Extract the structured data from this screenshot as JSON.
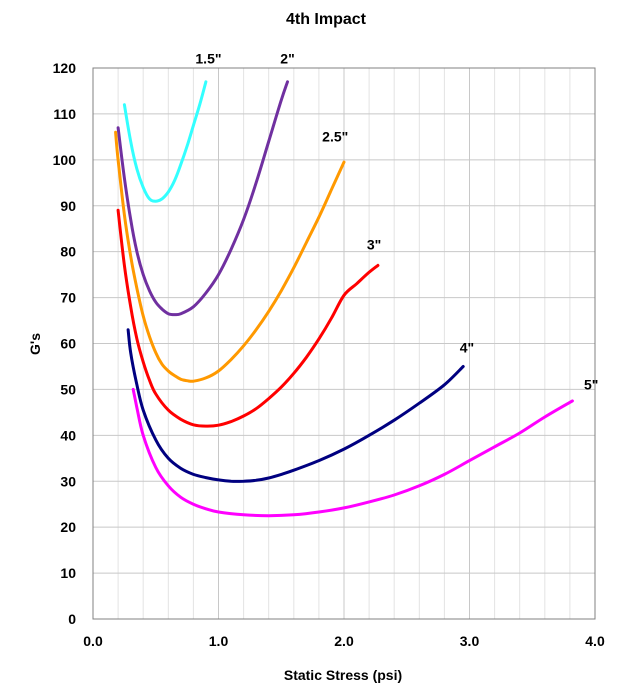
{
  "chart_data": {
    "type": "line",
    "title": "4th Impact",
    "xlabel": "Static Stress (psi)",
    "ylabel": "G's",
    "xlim": [
      0,
      4
    ],
    "ylim": [
      0,
      120
    ],
    "x_ticks": [
      "0.0",
      "1.0",
      "2.0",
      "3.0",
      "4.0"
    ],
    "y_ticks": [
      "0",
      "10",
      "20",
      "30",
      "40",
      "50",
      "60",
      "70",
      "80",
      "90",
      "100",
      "110",
      "120"
    ],
    "grid": true,
    "minor_grid": true,
    "series": [
      {
        "name": "1.5\"",
        "color": "#33ffff",
        "points": [
          [
            0.2,
            121
          ],
          [
            0.25,
            112
          ],
          [
            0.3,
            104
          ],
          [
            0.35,
            98
          ],
          [
            0.4,
            94
          ],
          [
            0.45,
            91.5
          ],
          [
            0.5,
            91
          ],
          [
            0.55,
            91.5
          ],
          [
            0.6,
            93
          ],
          [
            0.65,
            95.5
          ],
          [
            0.7,
            99
          ],
          [
            0.75,
            103
          ],
          [
            0.8,
            107.5
          ],
          [
            0.85,
            112
          ],
          [
            0.9,
            117
          ]
        ]
      },
      {
        "name": "2\"",
        "color": "#7030a0",
        "points": [
          [
            0.15,
            121
          ],
          [
            0.2,
            107
          ],
          [
            0.25,
            96
          ],
          [
            0.3,
            87
          ],
          [
            0.35,
            80
          ],
          [
            0.4,
            75
          ],
          [
            0.45,
            71.5
          ],
          [
            0.5,
            69
          ],
          [
            0.55,
            67.5
          ],
          [
            0.6,
            66.5
          ],
          [
            0.65,
            66.3
          ],
          [
            0.7,
            66.5
          ],
          [
            0.8,
            68
          ],
          [
            0.9,
            71
          ],
          [
            1.0,
            75
          ],
          [
            1.1,
            80.5
          ],
          [
            1.2,
            87
          ],
          [
            1.3,
            95
          ],
          [
            1.4,
            104
          ],
          [
            1.5,
            113
          ],
          [
            1.55,
            117
          ]
        ]
      },
      {
        "name": "2.5\"",
        "color": "#ff9900",
        "points": [
          [
            0.18,
            106
          ],
          [
            0.2,
            100
          ],
          [
            0.25,
            88
          ],
          [
            0.3,
            79
          ],
          [
            0.35,
            72
          ],
          [
            0.4,
            66
          ],
          [
            0.45,
            61.5
          ],
          [
            0.5,
            58
          ],
          [
            0.55,
            55.5
          ],
          [
            0.6,
            54
          ],
          [
            0.65,
            53
          ],
          [
            0.7,
            52.2
          ],
          [
            0.75,
            51.9
          ],
          [
            0.8,
            51.8
          ],
          [
            0.9,
            52.5
          ],
          [
            1.0,
            54
          ],
          [
            1.1,
            56.5
          ],
          [
            1.2,
            59.5
          ],
          [
            1.3,
            63
          ],
          [
            1.4,
            67
          ],
          [
            1.5,
            71.5
          ],
          [
            1.6,
            76.5
          ],
          [
            1.7,
            82
          ],
          [
            1.8,
            87.5
          ],
          [
            1.9,
            93.5
          ],
          [
            2.0,
            99.5
          ]
        ]
      },
      {
        "name": "3\"",
        "color": "#ff0000",
        "points": [
          [
            0.2,
            89
          ],
          [
            0.25,
            77
          ],
          [
            0.3,
            68
          ],
          [
            0.35,
            61
          ],
          [
            0.4,
            56
          ],
          [
            0.45,
            52
          ],
          [
            0.5,
            49
          ],
          [
            0.6,
            45.5
          ],
          [
            0.7,
            43.5
          ],
          [
            0.8,
            42.3
          ],
          [
            0.9,
            42
          ],
          [
            1.0,
            42.2
          ],
          [
            1.1,
            43
          ],
          [
            1.2,
            44.2
          ],
          [
            1.3,
            45.8
          ],
          [
            1.4,
            48
          ],
          [
            1.5,
            50.5
          ],
          [
            1.6,
            53.5
          ],
          [
            1.7,
            57
          ],
          [
            1.8,
            61
          ],
          [
            1.9,
            65.5
          ],
          [
            2.0,
            70.5
          ],
          [
            2.1,
            73
          ],
          [
            2.2,
            75.5
          ],
          [
            2.27,
            77
          ]
        ]
      },
      {
        "name": "4\"",
        "color": "#000080",
        "points": [
          [
            0.28,
            63
          ],
          [
            0.3,
            58
          ],
          [
            0.35,
            51
          ],
          [
            0.4,
            45.5
          ],
          [
            0.5,
            39
          ],
          [
            0.6,
            35
          ],
          [
            0.7,
            32.8
          ],
          [
            0.8,
            31.5
          ],
          [
            0.9,
            30.8
          ],
          [
            1.0,
            30.3
          ],
          [
            1.1,
            30
          ],
          [
            1.2,
            30
          ],
          [
            1.3,
            30.2
          ],
          [
            1.4,
            30.7
          ],
          [
            1.5,
            31.5
          ],
          [
            1.6,
            32.4
          ],
          [
            1.8,
            34.5
          ],
          [
            2.0,
            37
          ],
          [
            2.2,
            40
          ],
          [
            2.4,
            43.3
          ],
          [
            2.6,
            47
          ],
          [
            2.8,
            51
          ],
          [
            2.95,
            55
          ]
        ]
      },
      {
        "name": "5\"",
        "color": "#ff00ff",
        "points": [
          [
            0.32,
            50
          ],
          [
            0.35,
            46
          ],
          [
            0.4,
            40
          ],
          [
            0.5,
            33
          ],
          [
            0.6,
            29
          ],
          [
            0.7,
            26.5
          ],
          [
            0.8,
            25
          ],
          [
            0.9,
            24
          ],
          [
            1.0,
            23.3
          ],
          [
            1.2,
            22.7
          ],
          [
            1.4,
            22.5
          ],
          [
            1.6,
            22.7
          ],
          [
            1.8,
            23.3
          ],
          [
            2.0,
            24.2
          ],
          [
            2.2,
            25.5
          ],
          [
            2.4,
            27
          ],
          [
            2.6,
            29
          ],
          [
            2.8,
            31.5
          ],
          [
            3.0,
            34.5
          ],
          [
            3.2,
            37.5
          ],
          [
            3.4,
            40.5
          ],
          [
            3.6,
            44
          ],
          [
            3.82,
            47.5
          ]
        ]
      }
    ],
    "series_labels": [
      {
        "text": "1.5\"",
        "x": 0.92,
        "y": 121
      },
      {
        "text": "2\"",
        "x": 1.55,
        "y": 121
      },
      {
        "text": "2.5\"",
        "x": 1.93,
        "y": 104
      },
      {
        "text": "3\"",
        "x": 2.24,
        "y": 80.5
      },
      {
        "text": "4\"",
        "x": 2.98,
        "y": 58
      },
      {
        "text": "5\"",
        "x": 3.97,
        "y": 50
      }
    ]
  }
}
